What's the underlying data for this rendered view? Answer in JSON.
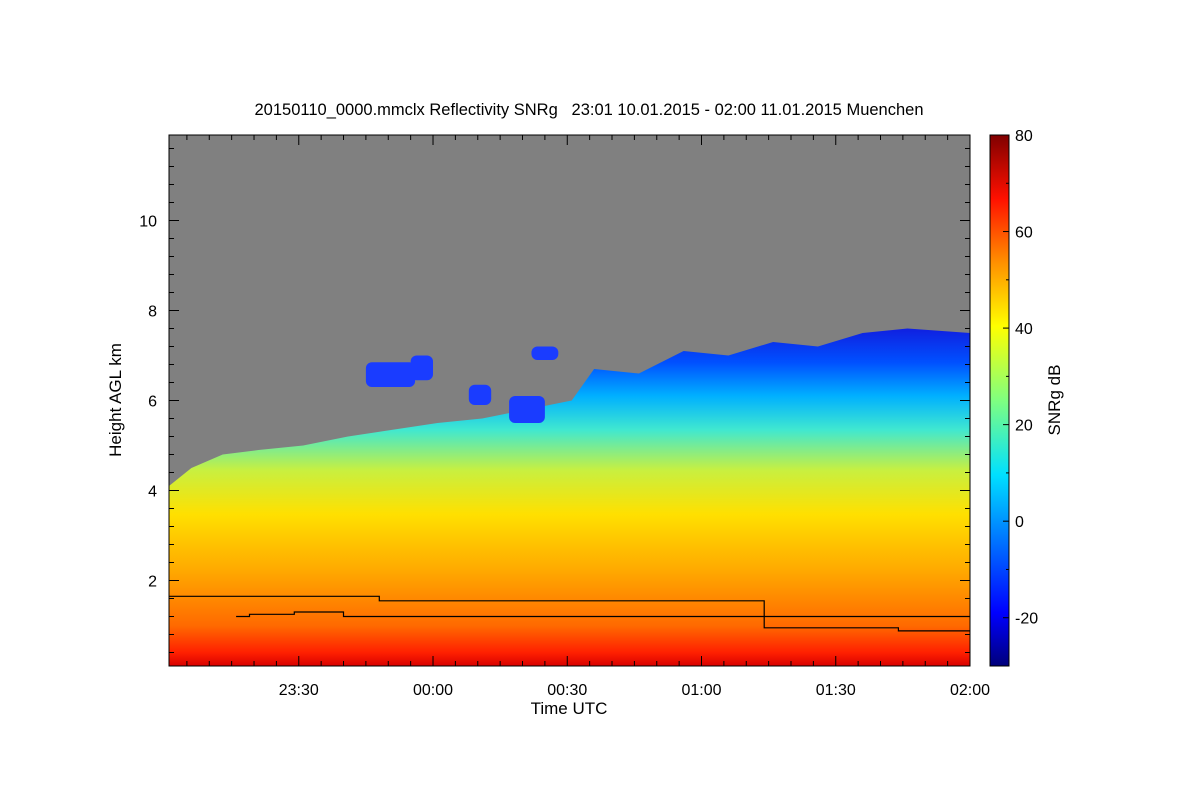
{
  "chart_data": {
    "type": "heatmap",
    "title": "20150110_0000.mmclx Reflectivity SNRg   23:01 10.01.2015 - 02:00 11.01.2015 Muenchen",
    "xlabel": "Time UTC",
    "ylabel": "Height AGL km",
    "colorbar_label": "SNRg dB",
    "x_ticks": [
      {
        "label": "23:30",
        "minutes": 29
      },
      {
        "label": "00:00",
        "minutes": 59
      },
      {
        "label": "00:30",
        "minutes": 89
      },
      {
        "label": "01:00",
        "minutes": 119
      },
      {
        "label": "01:30",
        "minutes": 149
      },
      {
        "label": "02:00",
        "minutes": 179
      }
    ],
    "xlim_minutes": [
      0,
      179
    ],
    "y_ticks": [
      2,
      4,
      6,
      8,
      10
    ],
    "ylim": [
      0.1,
      11.9
    ],
    "colorbar_ticks": [
      -20,
      0,
      20,
      40,
      60,
      80
    ],
    "colorbar_range": [
      -30,
      80
    ],
    "background_color": "#808080",
    "echo_top": [
      {
        "t": 0,
        "h": 4.1
      },
      {
        "t": 5,
        "h": 4.5
      },
      {
        "t": 12,
        "h": 4.8
      },
      {
        "t": 20,
        "h": 4.9
      },
      {
        "t": 30,
        "h": 5.0
      },
      {
        "t": 40,
        "h": 5.2
      },
      {
        "t": 50,
        "h": 5.35
      },
      {
        "t": 60,
        "h": 5.5
      },
      {
        "t": 70,
        "h": 5.6
      },
      {
        "t": 80,
        "h": 5.8
      },
      {
        "t": 90,
        "h": 6.0
      },
      {
        "t": 95,
        "h": 6.7
      },
      {
        "t": 105,
        "h": 6.6
      },
      {
        "t": 115,
        "h": 7.1
      },
      {
        "t": 125,
        "h": 7.0
      },
      {
        "t": 135,
        "h": 7.3
      },
      {
        "t": 145,
        "h": 7.2
      },
      {
        "t": 155,
        "h": 7.5
      },
      {
        "t": 165,
        "h": 7.6
      },
      {
        "t": 179,
        "h": 7.5
      }
    ],
    "cloud_patches": [
      {
        "t0": 44,
        "t1": 55,
        "h0": 6.3,
        "h1": 6.85
      },
      {
        "t0": 54,
        "t1": 59,
        "h0": 6.45,
        "h1": 7.0
      },
      {
        "t0": 67,
        "t1": 72,
        "h0": 5.9,
        "h1": 6.35
      },
      {
        "t0": 76,
        "t1": 84,
        "h0": 5.5,
        "h1": 6.1
      },
      {
        "t0": 81,
        "t1": 87,
        "h0": 6.9,
        "h1": 7.2
      }
    ],
    "melting_layer_lines": [
      {
        "name": "upper",
        "points": [
          [
            0,
            1.65
          ],
          [
            15,
            1.65
          ],
          [
            15,
            1.65
          ],
          [
            47,
            1.65
          ],
          [
            47,
            1.55
          ],
          [
            133,
            1.55
          ],
          [
            133,
            1.2
          ],
          [
            179,
            1.2
          ]
        ]
      },
      {
        "name": "lower",
        "points": [
          [
            15,
            1.2
          ],
          [
            18,
            1.2
          ],
          [
            18,
            1.25
          ],
          [
            28,
            1.25
          ],
          [
            28,
            1.3
          ],
          [
            39,
            1.3
          ],
          [
            39,
            1.2
          ],
          [
            133,
            1.2
          ],
          [
            133,
            0.95
          ],
          [
            163,
            0.95
          ],
          [
            163,
            0.88
          ],
          [
            179,
            0.88
          ]
        ]
      }
    ]
  }
}
